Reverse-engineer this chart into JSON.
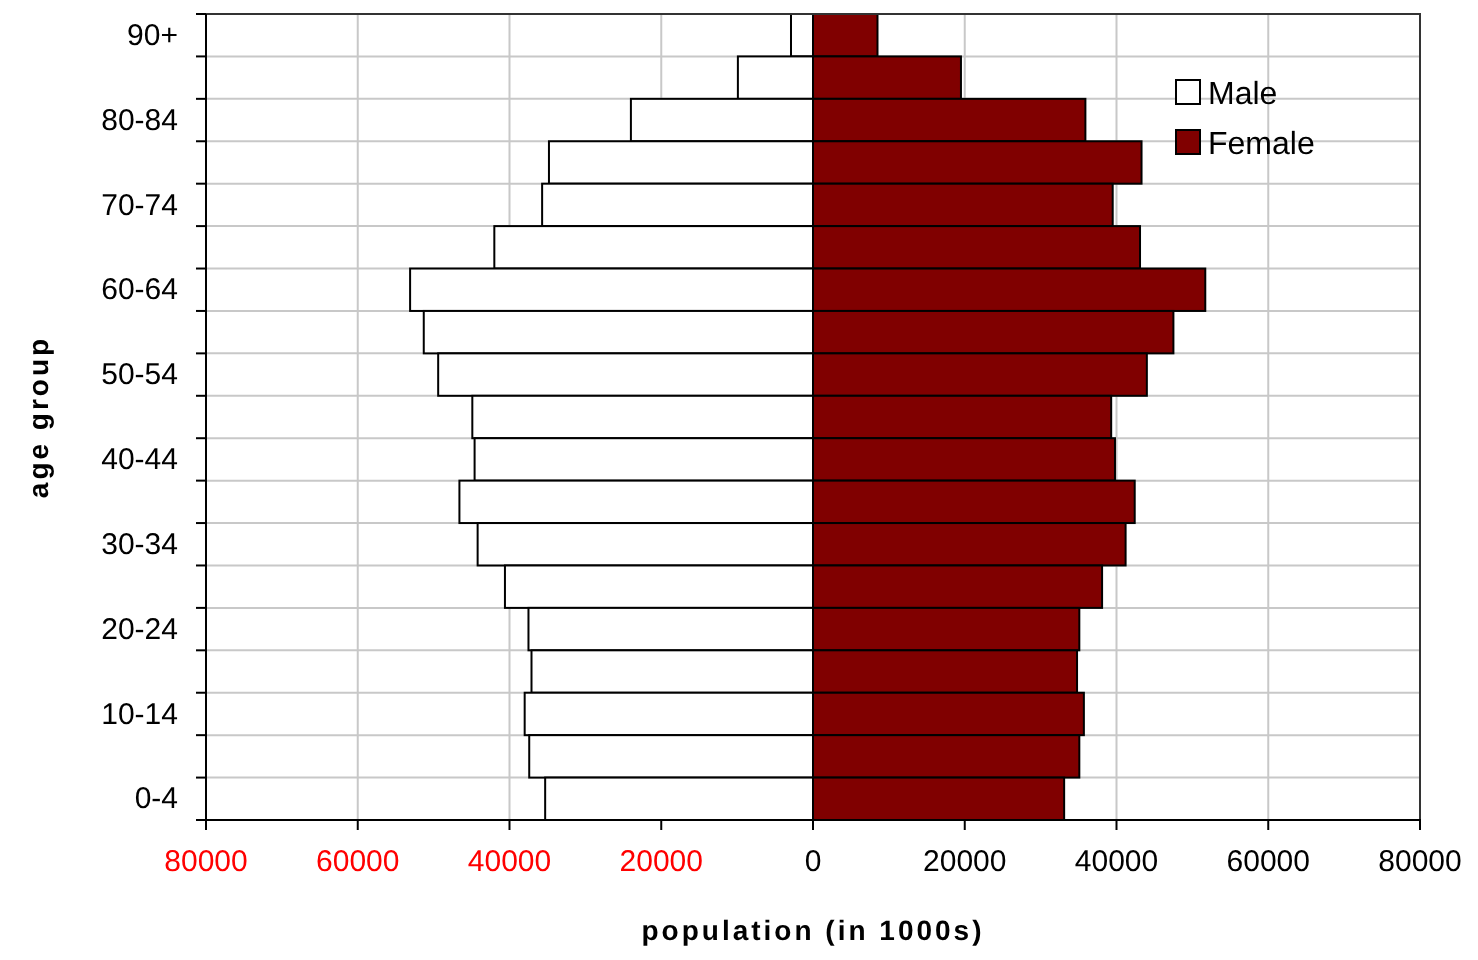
{
  "chart_data": {
    "type": "bar",
    "orientation": "horizontal",
    "stacked": true,
    "xlabel": "population (in 1000s)",
    "ylabel": "age group",
    "categories": [
      "90+",
      null,
      "80-84",
      null,
      "70-74",
      null,
      "60-64",
      null,
      "50-54",
      null,
      "40-44",
      null,
      "30-34",
      null,
      "20-24",
      null,
      "10-14",
      null,
      "0-4"
    ],
    "series": [
      {
        "name": "Male",
        "color": "#ffffff",
        "values": [
          -2900,
          -9900,
          -24000,
          -34800,
          -35700,
          -42000,
          -53100,
          -51300,
          -49400,
          -44900,
          -44600,
          -46600,
          -44200,
          -40600,
          -37500,
          -37100,
          -38000,
          -37400,
          -35300
        ]
      },
      {
        "name": "Female",
        "color": "#800000",
        "values": [
          8500,
          19500,
          35900,
          43300,
          39500,
          43100,
          51700,
          47500,
          44000,
          39300,
          39800,
          42400,
          41200,
          38100,
          35100,
          34800,
          35700,
          35100,
          33100
        ]
      }
    ],
    "xlim": [
      -80000,
      80000
    ],
    "xticks": [
      {
        "value": -80000,
        "label": "80000"
      },
      {
        "value": -60000,
        "label": "60000"
      },
      {
        "value": -40000,
        "label": "40000"
      },
      {
        "value": -20000,
        "label": "20000"
      },
      0,
      20000,
      40000,
      60000,
      80000
    ],
    "grid": true,
    "legend": "top right"
  }
}
